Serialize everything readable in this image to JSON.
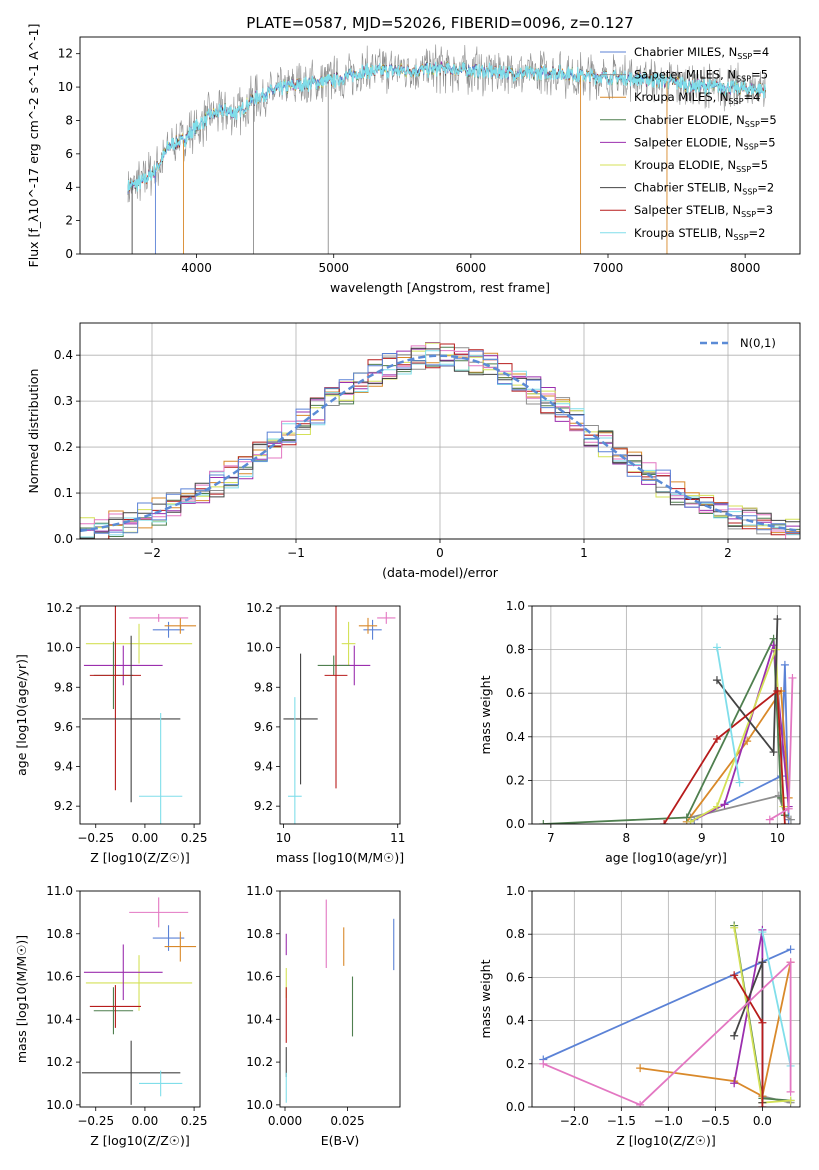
{
  "figure_title": "PLATE=0587, MJD=52026, FIBERID=0096, z=0.127",
  "colors": {
    "Chabrier MILES": "#5b82d6",
    "Salpeter MILES": "#8e8e8e",
    "Kroupa MILES": "#d9892a",
    "Chabrier ELODIE": "#4f7f4f",
    "Salpeter ELODIE": "#9b2fae",
    "Kroupa ELODIE": "#d4e157",
    "Chabrier STELIB": "#444444",
    "Salpeter STELIB": "#b71c1c",
    "Kroupa STELIB": "#80deea",
    "pink": "#e377c2",
    "normal": "#5b8bd6"
  },
  "chart_data": [
    {
      "id": "spectrum",
      "type": "line",
      "xlabel": "wavelength [Angstrom, rest frame]",
      "ylabel": "Flux [f_λ10^-17 erg cm^-2 s^-1 A^-1]",
      "xlim": [
        3150,
        8400
      ],
      "ylim": [
        0,
        13
      ],
      "xticks": [
        4000,
        5000,
        6000,
        7000,
        8000
      ],
      "yticks": [
        0,
        2,
        4,
        6,
        8,
        10,
        12
      ],
      "legend_position": "upper right",
      "legend": [
        {
          "name": "Chabrier MILES",
          "nssp": "4",
          "color": "#5b82d6"
        },
        {
          "name": "Salpeter MILES",
          "nssp": "5",
          "color": "#8e8e8e"
        },
        {
          "name": "Kroupa MILES",
          "nssp": "4",
          "color": "#d9892a"
        },
        {
          "name": "Chabrier ELODIE",
          "nssp": "5",
          "color": "#4f7f4f"
        },
        {
          "name": "Salpeter ELODIE",
          "nssp": "5",
          "color": "#9b2fae"
        },
        {
          "name": "Kroupa ELODIE",
          "nssp": "5",
          "color": "#d4e157"
        },
        {
          "name": "Chabrier STELIB",
          "nssp": "2",
          "color": "#444444"
        },
        {
          "name": "Salpeter STELIB",
          "nssp": "3",
          "color": "#b71c1c"
        },
        {
          "name": "Kroupa STELIB",
          "nssp": "2",
          "color": "#80deea"
        }
      ],
      "continuum": [
        [
          3500,
          4.0
        ],
        [
          3600,
          4.3
        ],
        [
          3700,
          5.0
        ],
        [
          3800,
          6.5
        ],
        [
          3900,
          6.8
        ],
        [
          4000,
          7.6
        ],
        [
          4100,
          8.3
        ],
        [
          4200,
          8.6
        ],
        [
          4300,
          8.4
        ],
        [
          4400,
          9.2
        ],
        [
          4500,
          9.6
        ],
        [
          4600,
          9.9
        ],
        [
          4700,
          10.1
        ],
        [
          4800,
          10.2
        ],
        [
          4900,
          10.3
        ],
        [
          5000,
          10.4
        ],
        [
          5200,
          10.9
        ],
        [
          5400,
          11.0
        ],
        [
          5600,
          11.0
        ],
        [
          5800,
          11.1
        ],
        [
          6000,
          11.0
        ],
        [
          6200,
          10.9
        ],
        [
          6400,
          10.8
        ],
        [
          6600,
          10.9
        ],
        [
          6800,
          10.7
        ],
        [
          7000,
          10.6
        ],
        [
          7200,
          10.5
        ],
        [
          7400,
          10.4
        ],
        [
          7600,
          10.1
        ],
        [
          7800,
          10.0
        ],
        [
          8000,
          9.9
        ],
        [
          8150,
          9.8
        ]
      ],
      "spikes": [
        [
          3530,
          0
        ],
        [
          3700,
          0
        ],
        [
          3905,
          0
        ],
        [
          4415,
          0
        ],
        [
          4960,
          0
        ],
        [
          6800,
          0
        ],
        [
          7430,
          0
        ]
      ]
    },
    {
      "id": "residual_hist",
      "type": "histogram",
      "xlabel": "(data-model)/error",
      "ylabel": "Normed distribution",
      "xlim": [
        -2.5,
        2.5
      ],
      "ylim": [
        0,
        0.47
      ],
      "xticks": [
        -2,
        -1,
        0,
        1,
        2
      ],
      "yticks": [
        0.0,
        0.1,
        0.2,
        0.3,
        0.4
      ],
      "grid": true,
      "legend_position": "upper right",
      "legend_label": "N(0,1)",
      "bin_width": 0.1
    },
    {
      "id": "age_vs_Z",
      "type": "errorbar",
      "xlabel": "Z [log10(Z/Z☉)]",
      "ylabel": "age  [log10(age/yr)]",
      "xlim": [
        -0.33,
        0.28
      ],
      "ylim": [
        9.11,
        10.21
      ],
      "xticks": [
        -0.25,
        0.0,
        0.25
      ],
      "yticks": [
        9.2,
        9.4,
        9.6,
        9.8,
        10.0,
        10.2
      ],
      "points": [
        {
          "x": 0.12,
          "xerr": 0.08,
          "y": 10.09,
          "yerr": 0.04,
          "color": "#5b82d6"
        },
        {
          "x": 0.18,
          "xerr": 0.08,
          "y": 10.11,
          "yerr": 0.04,
          "color": "#d9892a"
        },
        {
          "x": 0.07,
          "xerr": 0.15,
          "y": 10.15,
          "yerr": 0.02,
          "color": "#e377c2"
        },
        {
          "x": -0.03,
          "xerr": 0.27,
          "y": 10.02,
          "yerr": 0.1,
          "color": "#d4e157"
        },
        {
          "x": -0.11,
          "xerr": 0.2,
          "y": 9.91,
          "yerr": 0.1,
          "color": "#9b2fae"
        },
        {
          "x": -0.16,
          "xerr": 0.1,
          "y": 9.86,
          "yerr": 0.17,
          "color": "#4f7f4f"
        },
        {
          "x": -0.15,
          "xerr": 0.13,
          "y": 9.86,
          "yerr": 0.58,
          "color": "#b71c1c"
        },
        {
          "x": -0.07,
          "xerr": 0.25,
          "y": 9.64,
          "yerr": 0.42,
          "color": "#444444"
        },
        {
          "x": 0.08,
          "xerr": 0.11,
          "y": 9.25,
          "yerr": 0.42,
          "color": "#80deea"
        }
      ]
    },
    {
      "id": "age_vs_mass",
      "type": "errorbar",
      "xlabel": "mass [log10(M/M☉)]",
      "ylabel": "",
      "xlim": [
        9.97,
        11.02
      ],
      "ylim": [
        9.11,
        10.21
      ],
      "xticks": [
        10,
        11
      ],
      "yticks": [
        9.2,
        9.4,
        9.6,
        9.8,
        10.0,
        10.2
      ],
      "points": [
        {
          "x": 10.78,
          "xerr": 0.08,
          "y": 10.09,
          "yerr": 0.05,
          "color": "#5b82d6"
        },
        {
          "x": 10.74,
          "xerr": 0.08,
          "y": 10.11,
          "yerr": 0.04,
          "color": "#d9892a"
        },
        {
          "x": 10.9,
          "xerr": 0.08,
          "y": 10.15,
          "yerr": 0.03,
          "color": "#e377c2"
        },
        {
          "x": 10.57,
          "xerr": 0.06,
          "y": 10.02,
          "yerr": 0.11,
          "color": "#d4e157"
        },
        {
          "x": 10.62,
          "xerr": 0.14,
          "y": 9.91,
          "yerr": 0.1,
          "color": "#9b2fae"
        },
        {
          "x": 10.44,
          "xerr": 0.14,
          "y": 9.91,
          "yerr": 0.05,
          "color": "#4f7f4f"
        },
        {
          "x": 10.46,
          "xerr": 0.1,
          "y": 9.86,
          "yerr": 0.57,
          "color": "#b71c1c"
        },
        {
          "x": 10.15,
          "xerr": 0.15,
          "y": 9.64,
          "yerr": 0.33,
          "color": "#444444"
        },
        {
          "x": 10.1,
          "xerr": 0.06,
          "y": 9.25,
          "yerr": 0.5,
          "color": "#80deea"
        }
      ]
    },
    {
      "id": "weight_vs_age",
      "type": "line",
      "xlabel": "age  [log10(age/yr)]",
      "ylabel": "mass weight",
      "xlim": [
        6.75,
        10.3
      ],
      "ylim": [
        0,
        1.0
      ],
      "xticks": [
        7,
        8,
        9,
        10
      ],
      "yticks": [
        0.0,
        0.2,
        0.4,
        0.6,
        0.8,
        1.0
      ],
      "grid": true,
      "series": [
        {
          "color": "#5b82d6",
          "x": [
            8.9,
            10.05,
            10.1,
            10.15
          ],
          "y": [
            0.02,
            0.22,
            0.73,
            0.02
          ]
        },
        {
          "color": "#8e8e8e",
          "x": [
            8.85,
            10.02,
            10.1,
            10.18
          ],
          "y": [
            0.03,
            0.13,
            0.04,
            0.02
          ]
        },
        {
          "color": "#d9892a",
          "x": [
            8.8,
            9.6,
            10.05,
            10.15
          ],
          "y": [
            0.01,
            0.38,
            0.61,
            0.12
          ]
        },
        {
          "color": "#4f7f4f",
          "x": [
            6.9,
            8.8,
            9.95,
            10.05,
            10.1
          ],
          "y": [
            0.0,
            0.03,
            0.85,
            0.12,
            0.04
          ]
        },
        {
          "color": "#9b2fae",
          "x": [
            8.85,
            9.3,
            9.95,
            10.15
          ],
          "y": [
            0.01,
            0.09,
            0.82,
            0.08
          ]
        },
        {
          "color": "#d4e157",
          "x": [
            8.85,
            9.2,
            9.98,
            10.08
          ],
          "y": [
            0.01,
            0.08,
            0.8,
            0.08
          ]
        },
        {
          "color": "#444444",
          "x": [
            9.2,
            9.95,
            10.0
          ],
          "y": [
            0.66,
            0.33,
            0.94
          ]
        },
        {
          "color": "#b71c1c",
          "x": [
            8.5,
            9.2,
            10.0,
            10.1
          ],
          "y": [
            0.0,
            0.39,
            0.61,
            0.0
          ]
        },
        {
          "color": "#80deea",
          "x": [
            9.2,
            9.5
          ],
          "y": [
            0.81,
            0.19
          ]
        },
        {
          "color": "#e377c2",
          "x": [
            9.9,
            10.15,
            10.2
          ],
          "y": [
            0.02,
            0.07,
            0.67
          ]
        }
      ]
    },
    {
      "id": "mass_vs_Z",
      "type": "errorbar",
      "xlabel": "Z [log10(Z/Z☉)]",
      "ylabel": "mass [log10(M/M☉)]",
      "xlim": [
        -0.33,
        0.28
      ],
      "ylim": [
        9.99,
        11.0
      ],
      "xticks": [
        -0.25,
        0.0,
        0.25
      ],
      "yticks": [
        10.0,
        10.2,
        10.4,
        10.6,
        10.8,
        11.0
      ],
      "points": [
        {
          "x": 0.12,
          "xerr": 0.08,
          "y": 10.78,
          "yerr": 0.06,
          "color": "#5b82d6"
        },
        {
          "x": 0.18,
          "xerr": 0.08,
          "y": 10.74,
          "yerr": 0.07,
          "color": "#d9892a"
        },
        {
          "x": 0.07,
          "xerr": 0.15,
          "y": 10.9,
          "yerr": 0.07,
          "color": "#e377c2"
        },
        {
          "x": -0.03,
          "xerr": 0.27,
          "y": 10.57,
          "yerr": 0.13,
          "color": "#d4e157"
        },
        {
          "x": -0.11,
          "xerr": 0.2,
          "y": 10.62,
          "yerr": 0.13,
          "color": "#9b2fae"
        },
        {
          "x": -0.16,
          "xerr": 0.1,
          "y": 10.44,
          "yerr": 0.11,
          "color": "#4f7f4f"
        },
        {
          "x": -0.15,
          "xerr": 0.13,
          "y": 10.46,
          "yerr": 0.1,
          "color": "#b71c1c"
        },
        {
          "x": -0.07,
          "xerr": 0.25,
          "y": 10.15,
          "yerr": 0.15,
          "color": "#444444"
        },
        {
          "x": 0.08,
          "xerr": 0.11,
          "y": 10.1,
          "yerr": 0.06,
          "color": "#80deea"
        }
      ]
    },
    {
      "id": "mass_vs_EBV",
      "type": "errorbar",
      "xlabel": "E(B-V)",
      "ylabel": "",
      "xlim": [
        -0.002,
        0.046
      ],
      "ylim": [
        9.99,
        11.0
      ],
      "xticks": [
        0.0,
        0.025
      ],
      "yticks": [
        10.0,
        10.2,
        10.4,
        10.6,
        10.8,
        11.0
      ],
      "points": [
        {
          "x": 0.0435,
          "y": 10.75,
          "yerr": 0.12,
          "color": "#5b82d6"
        },
        {
          "x": 0.0235,
          "y": 10.74,
          "yerr": 0.09,
          "color": "#d9892a"
        },
        {
          "x": 0.0165,
          "y": 10.8,
          "yerr": 0.16,
          "color": "#e377c2"
        },
        {
          "x": 0.0005,
          "y": 10.57,
          "yerr": 0.07,
          "color": "#d4e157"
        },
        {
          "x": 0.0005,
          "y": 10.75,
          "yerr": 0.05,
          "color": "#9b2fae"
        },
        {
          "x": 0.027,
          "y": 10.46,
          "yerr": 0.14,
          "color": "#4f7f4f"
        },
        {
          "x": 0.0005,
          "y": 10.42,
          "yerr": 0.13,
          "color": "#b71c1c"
        },
        {
          "x": 0.0005,
          "y": 10.2,
          "yerr": 0.07,
          "color": "#444444"
        },
        {
          "x": 0.0005,
          "y": 10.08,
          "yerr": 0.07,
          "color": "#80deea"
        }
      ]
    },
    {
      "id": "weight_vs_Z",
      "type": "line",
      "xlabel": "Z [log10(Z/Z☉)]",
      "ylabel": "mass weight",
      "xlim": [
        -2.45,
        0.4
      ],
      "ylim": [
        0,
        1.0
      ],
      "xticks": [
        -2.0,
        -1.5,
        -1.0,
        -0.5,
        0.0
      ],
      "yticks": [
        0.0,
        0.2,
        0.4,
        0.6,
        0.8,
        1.0
      ],
      "grid": true,
      "series": [
        {
          "color": "#5b82d6",
          "x": [
            -2.33,
            0.3
          ],
          "y": [
            0.22,
            0.73
          ]
        },
        {
          "color": "#8e8e8e",
          "x": [
            0.0,
            0.3
          ],
          "y": [
            0.05,
            0.02
          ]
        },
        {
          "color": "#d9892a",
          "x": [
            -1.3,
            -0.3,
            0.0,
            0.3
          ],
          "y": [
            0.18,
            0.12,
            0.05,
            0.67
          ]
        },
        {
          "color": "#4f7f4f",
          "x": [
            -0.3,
            0.0,
            0.3
          ],
          "y": [
            0.84,
            0.04,
            0.03
          ]
        },
        {
          "color": "#9b2fae",
          "x": [
            -0.3,
            0.0,
            0.0
          ],
          "y": [
            0.11,
            0.82,
            0.02
          ]
        },
        {
          "color": "#d4e157",
          "x": [
            -0.3,
            0.0,
            0.3
          ],
          "y": [
            0.83,
            0.02,
            0.03
          ]
        },
        {
          "color": "#444444",
          "x": [
            -0.3,
            0.0,
            0.0
          ],
          "y": [
            0.33,
            0.67,
            0.02
          ]
        },
        {
          "color": "#b71c1c",
          "x": [
            -0.3,
            0.0,
            0.0
          ],
          "y": [
            0.61,
            0.39,
            0.0
          ]
        },
        {
          "color": "#80deea",
          "x": [
            0.0,
            0.3
          ],
          "y": [
            0.81,
            0.19
          ]
        },
        {
          "color": "#e377c2",
          "x": [
            -2.33,
            -1.3,
            0.3,
            0.3
          ],
          "y": [
            0.2,
            0.01,
            0.67,
            0.07
          ]
        }
      ]
    }
  ]
}
